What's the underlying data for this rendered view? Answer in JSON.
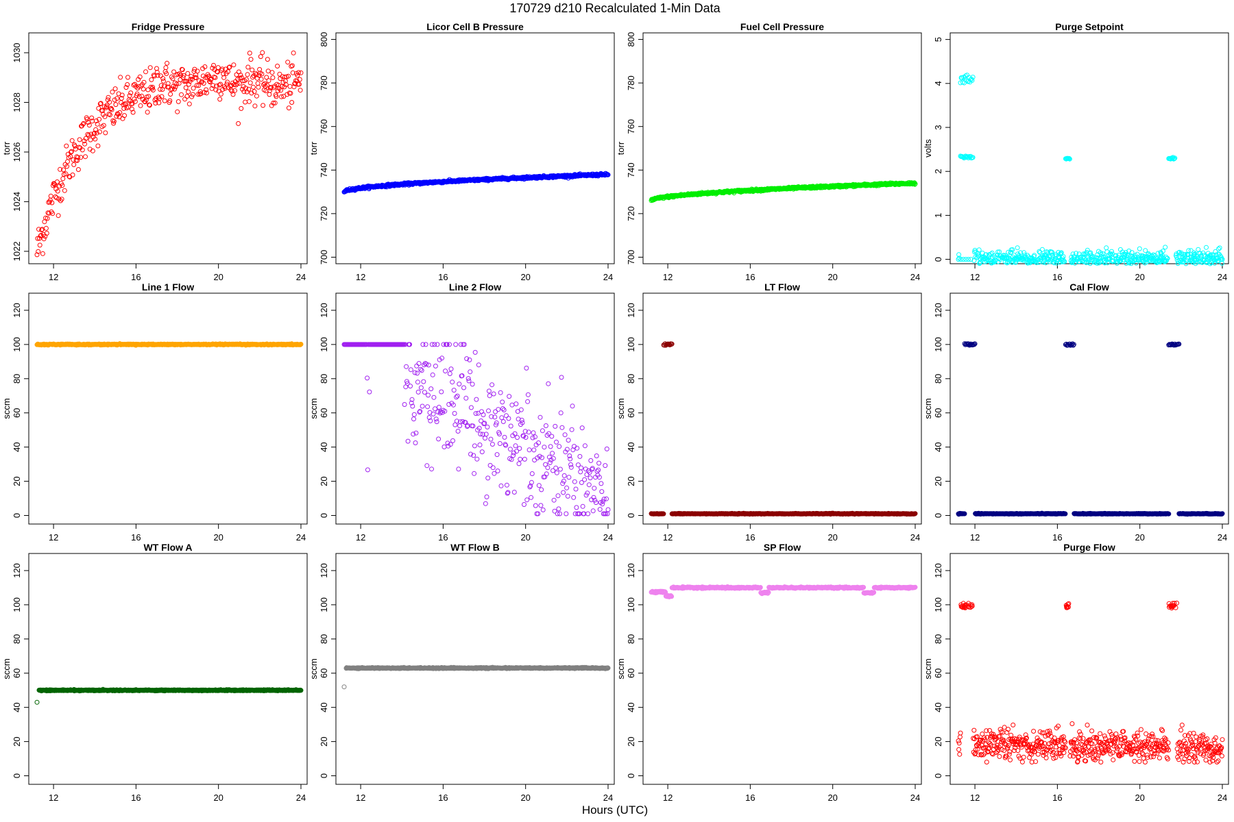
{
  "figure": {
    "title": "170729   d210   Recalculated 1-Min Data",
    "xlabel": "Hours (UTC)"
  },
  "chart_data": [
    {
      "type": "scatter",
      "title": "Fridge Pressure",
      "ylabel": "torr",
      "color": "#ff0000",
      "xlim": [
        10.8,
        24.3
      ],
      "ylim": [
        1021.5,
        1030.8
      ],
      "xticks": [
        12,
        16,
        20,
        24
      ],
      "yticks": [
        1022,
        1024,
        1026,
        1028,
        1030
      ],
      "pattern": "fridge",
      "x_range": [
        11.2,
        24
      ],
      "values_note": "rising from ~1022 at 11.2h to ~1028.5 by 16h, ~1029 plateau with scatter to 24h"
    },
    {
      "type": "scatter",
      "title": "Licor Cell B Pressure",
      "ylabel": "torr",
      "color": "#0000ff",
      "xlim": [
        10.8,
        24.3
      ],
      "ylim": [
        697,
        803
      ],
      "xticks": [
        12,
        16,
        20,
        24
      ],
      "yticks": [
        700,
        720,
        740,
        760,
        780,
        800
      ],
      "pattern": "linear_rise",
      "x_range": [
        11.2,
        24
      ],
      "start": 730,
      "end": 738
    },
    {
      "type": "scatter",
      "title": "Fuel Cell Pressure",
      "ylabel": "torr",
      "color": "#00ee00",
      "xlim": [
        10.8,
        24.3
      ],
      "ylim": [
        697,
        803
      ],
      "xticks": [
        12,
        16,
        20,
        24
      ],
      "yticks": [
        700,
        720,
        740,
        760,
        780,
        800
      ],
      "pattern": "linear_rise",
      "x_range": [
        11.2,
        24
      ],
      "start": 726,
      "end": 734
    },
    {
      "type": "scatter",
      "title": "Purge Setpoint",
      "ylabel": "volts",
      "color": "#00ffff",
      "xlim": [
        10.8,
        24.3
      ],
      "ylim": [
        -0.1,
        5.15
      ],
      "xticks": [
        12,
        16,
        20,
        24
      ],
      "yticks": [
        0,
        1,
        2,
        3,
        4,
        5
      ],
      "pattern": "setpoint",
      "x_range": [
        11.2,
        24
      ],
      "base": 0,
      "clusters": [
        {
          "x": [
            11.3,
            11.9
          ],
          "y": [
            4.0,
            4.25
          ]
        },
        {
          "x": [
            11.3,
            11.9
          ],
          "y": [
            2.3,
            2.35
          ]
        },
        {
          "x": [
            16.4,
            16.6
          ],
          "y": [
            2.28,
            2.3
          ]
        },
        {
          "x": [
            21.4,
            21.7
          ],
          "y": [
            2.28,
            2.32
          ]
        }
      ]
    },
    {
      "type": "scatter",
      "title": "Line 1 Flow",
      "ylabel": "sccm",
      "color": "#ffa500",
      "xlim": [
        10.8,
        24.3
      ],
      "ylim": [
        -5,
        130
      ],
      "xticks": [
        12,
        16,
        20,
        24
      ],
      "yticks": [
        0,
        20,
        40,
        60,
        80,
        100,
        120
      ],
      "pattern": "flat",
      "x_range": [
        11.2,
        24
      ],
      "value": 100
    },
    {
      "type": "scatter",
      "title": "Line 2 Flow",
      "ylabel": "sccm",
      "color": "#a020f0",
      "xlim": [
        10.8,
        24.3
      ],
      "ylim": [
        -5,
        130
      ],
      "xticks": [
        12,
        16,
        20,
        24
      ],
      "yticks": [
        0,
        20,
        40,
        60,
        80,
        100,
        120
      ],
      "pattern": "line2",
      "x_range": [
        11.2,
        24
      ],
      "values_note": "100 until ~14h, then scattered decline to ~10 by 23h"
    },
    {
      "type": "scatter",
      "title": "LT Flow",
      "ylabel": "sccm",
      "color": "#8b0000",
      "xlim": [
        10.8,
        24.3
      ],
      "ylim": [
        -5,
        130
      ],
      "xticks": [
        12,
        16,
        20,
        24
      ],
      "yticks": [
        0,
        20,
        40,
        60,
        80,
        100,
        120
      ],
      "pattern": "setpoint",
      "x_range": [
        11.2,
        24
      ],
      "base": 1,
      "clusters": [
        {
          "x": [
            11.8,
            12.2
          ],
          "y": [
            99.5,
            100.5
          ]
        }
      ]
    },
    {
      "type": "scatter",
      "title": "Cal Flow",
      "ylabel": "sccm",
      "color": "#000080",
      "xlim": [
        10.8,
        24.3
      ],
      "ylim": [
        -5,
        130
      ],
      "xticks": [
        12,
        16,
        20,
        24
      ],
      "yticks": [
        0,
        20,
        40,
        60,
        80,
        100,
        120
      ],
      "pattern": "setpoint",
      "x_range": [
        11.2,
        24
      ],
      "base": 1,
      "clusters": [
        {
          "x": [
            11.5,
            12.0
          ],
          "y": [
            99.5,
            100.5
          ]
        },
        {
          "x": [
            16.4,
            16.8
          ],
          "y": [
            99.5,
            100.5
          ]
        },
        {
          "x": [
            21.4,
            21.9
          ],
          "y": [
            99.5,
            100.5
          ]
        }
      ]
    },
    {
      "type": "scatter",
      "title": "WT Flow A",
      "ylabel": "sccm",
      "color": "#006400",
      "xlim": [
        10.8,
        24.3
      ],
      "ylim": [
        -5,
        130
      ],
      "xticks": [
        12,
        16,
        20,
        24
      ],
      "yticks": [
        0,
        20,
        40,
        60,
        80,
        100,
        120
      ],
      "pattern": "flat",
      "x_range": [
        11.3,
        24
      ],
      "value": 50,
      "outlier": [
        11.2,
        43
      ]
    },
    {
      "type": "scatter",
      "title": "WT Flow B",
      "ylabel": "sccm",
      "color": "#808080",
      "xlim": [
        10.8,
        24.3
      ],
      "ylim": [
        -5,
        130
      ],
      "xticks": [
        12,
        16,
        20,
        24
      ],
      "yticks": [
        0,
        20,
        40,
        60,
        80,
        100,
        120
      ],
      "pattern": "flat",
      "x_range": [
        11.3,
        24
      ],
      "value": 63,
      "outlier": [
        11.2,
        52
      ]
    },
    {
      "type": "scatter",
      "title": "SP Flow",
      "ylabel": "sccm",
      "color": "#ee82ee",
      "xlim": [
        10.8,
        24.3
      ],
      "ylim": [
        -5,
        130
      ],
      "xticks": [
        12,
        16,
        20,
        24
      ],
      "yticks": [
        0,
        20,
        40,
        60,
        80,
        100,
        120
      ],
      "pattern": "sp",
      "x_range": [
        11.2,
        24
      ],
      "value": 110,
      "dips": [
        {
          "x": [
            11.2,
            11.9
          ],
          "y": 107.5
        },
        {
          "x": [
            11.9,
            12.2
          ],
          "y": 105
        },
        {
          "x": [
            16.5,
            16.9
          ],
          "y": 107
        },
        {
          "x": [
            21.5,
            22.0
          ],
          "y": 107
        }
      ]
    },
    {
      "type": "scatter",
      "title": "Purge Flow",
      "ylabel": "sccm",
      "color": "#ff0000",
      "xlim": [
        10.8,
        24.3
      ],
      "ylim": [
        -5,
        130
      ],
      "xticks": [
        12,
        16,
        20,
        24
      ],
      "yticks": [
        0,
        20,
        40,
        60,
        80,
        100,
        120
      ],
      "pattern": "purge",
      "x_range": [
        11.2,
        24
      ],
      "base": 19,
      "clusters": [
        {
          "x": [
            11.3,
            11.9
          ],
          "y": [
            98,
            101
          ]
        },
        {
          "x": [
            16.4,
            16.6
          ],
          "y": [
            98,
            101
          ]
        },
        {
          "x": [
            21.4,
            21.8
          ],
          "y": [
            98,
            101
          ]
        }
      ]
    }
  ]
}
